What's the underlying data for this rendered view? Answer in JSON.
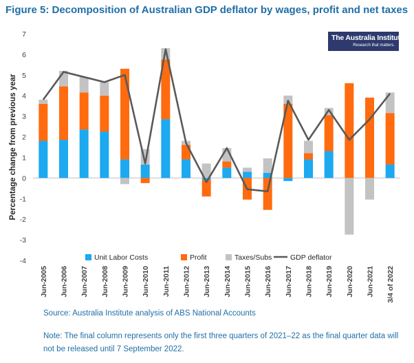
{
  "title": "Figure 5: Decomposition of Australian GDP deflator by wages, profit and net taxes",
  "logo": {
    "name": "The Australia Institute",
    "tagline": "Research that matters."
  },
  "source": "Source: Australia Institute analysis of ABS National Accounts",
  "note": "Note: The final column represents only the first three quarters of 2021–22 as the final quarter data will not be released until 7 September 2022.",
  "colors": {
    "ulc": "#1ca9f0",
    "profit": "#ff6b0e",
    "taxes": "#c3c3c3",
    "deflator": "#595959",
    "text": "#1f6fa6"
  },
  "chart_data": {
    "type": "bar",
    "stacked": true,
    "ylabel": "Percentage change from previous year",
    "ylim": [
      -4,
      7
    ],
    "yticks": [
      "-4",
      "-3",
      "-2",
      "-1",
      "0",
      "1",
      "2",
      "3",
      "4",
      "5",
      "6",
      "7"
    ],
    "categories": [
      "Jun-2005",
      "Jun-2006",
      "Jun-2007",
      "Jun-2008",
      "Jun-2009",
      "Jun-2010",
      "Jun-2011",
      "Jun-2012",
      "Jun-2013",
      "Jun-2014",
      "Jun-2015",
      "Jun-2016",
      "Jun-2017",
      "Jun-2018",
      "Jun-2019",
      "Jun-2020",
      "Jun-2021",
      "3/4 of 2022"
    ],
    "legend_position": "bottom",
    "series": [
      {
        "name": "Unit Labor Costs",
        "kind": "bar",
        "values": [
          1.8,
          1.85,
          2.35,
          2.25,
          0.9,
          0.65,
          2.85,
          0.9,
          -0.1,
          0.5,
          0.3,
          0.25,
          -0.15,
          0.9,
          1.3,
          0,
          0,
          0.65
        ]
      },
      {
        "name": "Profit",
        "kind": "bar",
        "values": [
          1.8,
          2.6,
          1.8,
          1.75,
          4.4,
          -0.25,
          2.9,
          0.7,
          -0.8,
          0.3,
          -1.05,
          -1.55,
          3.6,
          0.3,
          1.75,
          4.6,
          3.9,
          2.5
        ]
      },
      {
        "name": "Taxes/Subs",
        "kind": "bar",
        "values": [
          0.2,
          0.75,
          0.75,
          0.65,
          -0.3,
          0.75,
          0.55,
          0.2,
          0.7,
          0.65,
          0.2,
          0.7,
          0.4,
          0.6,
          0.35,
          -2.75,
          -1.05,
          1.0
        ]
      },
      {
        "name": "GDP deflator",
        "kind": "line",
        "values": [
          3.8,
          5.15,
          4.9,
          4.65,
          5.0,
          0.7,
          6.25,
          1.7,
          -0.2,
          1.45,
          -0.55,
          -0.65,
          3.75,
          1.85,
          3.3,
          1.85,
          2.85,
          4.1
        ]
      }
    ]
  }
}
